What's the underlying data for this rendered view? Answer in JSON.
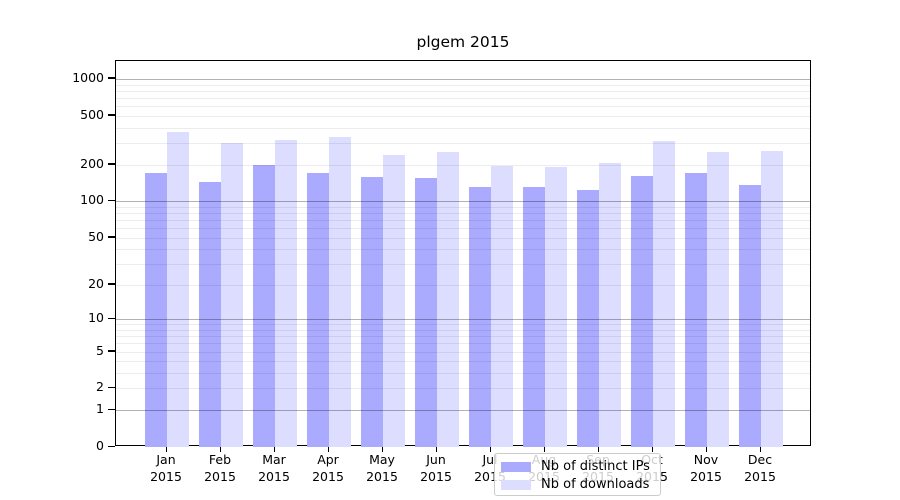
{
  "title": "plgem 2015",
  "colors": {
    "ips_bar": "#aaaaff",
    "downloads_bar": "#ddddff",
    "axis": "#000000",
    "legend_border": "#cccccc"
  },
  "legend": {
    "items": [
      {
        "label": "Nb of distinct IPs",
        "color": "#aaaaff"
      },
      {
        "label": "Nb of downloads",
        "color": "#ddddff"
      }
    ]
  },
  "chart_data": {
    "type": "bar",
    "title": "plgem 2015",
    "categories": [
      "Jan 2015",
      "Feb 2015",
      "Mar 2015",
      "Apr 2015",
      "May 2015",
      "Jun 2015",
      "Jul 2015",
      "Aug 2015",
      "Sep 2015",
      "Oct 2015",
      "Nov 2015",
      "Dec 2015"
    ],
    "series": [
      {
        "name": "Nb of distinct IPs",
        "color": "#aaaaff",
        "values": [
          172,
          145,
          200,
          170,
          157,
          155,
          130,
          130,
          124,
          162,
          172,
          136
        ]
      },
      {
        "name": "Nb of downloads",
        "color": "#ddddff",
        "values": [
          370,
          300,
          315,
          335,
          240,
          255,
          195,
          190,
          205,
          310,
          255,
          260
        ]
      }
    ],
    "xlabel": "",
    "ylabel": "",
    "yscale": "log10(1+y)",
    "yticks": [
      0,
      1,
      2,
      5,
      10,
      20,
      50,
      100,
      200,
      500,
      1000
    ],
    "ylim": [
      0,
      1400
    ],
    "grid": "horizontal major (powers of 10) + minor (2-9 per decade), drawn over bars",
    "legend_position": "inside lower-center"
  }
}
